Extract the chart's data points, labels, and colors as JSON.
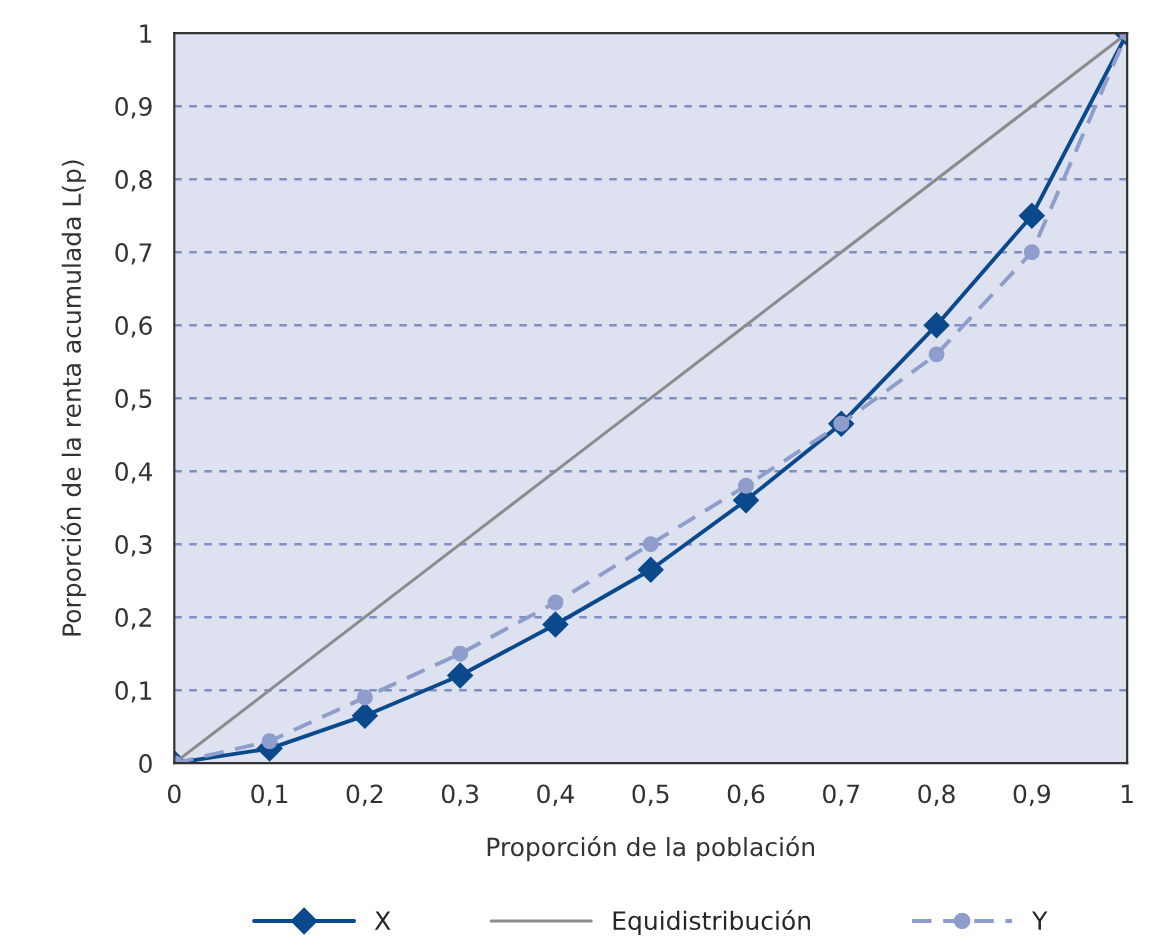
{
  "chart_data": {
    "type": "line",
    "xlabel": "Proporción de la población",
    "ylabel": "Porporción de la renta acumulada L(p)",
    "x": [
      0,
      0.1,
      0.2,
      0.3,
      0.4,
      0.5,
      0.6,
      0.7,
      0.8,
      0.9,
      1
    ],
    "series": [
      {
        "name": "X",
        "color": "#0a4a8c",
        "marker": "diamond",
        "line_style": "solid",
        "values": [
          0,
          0.02,
          0.065,
          0.12,
          0.19,
          0.265,
          0.36,
          0.465,
          0.6,
          0.75,
          1
        ]
      },
      {
        "name": "Equidistribución",
        "color": "#8c8c8c",
        "marker": "none",
        "line_style": "solid",
        "values": [
          0,
          0.1,
          0.2,
          0.3,
          0.4,
          0.5,
          0.6,
          0.7,
          0.8,
          0.9,
          1
        ]
      },
      {
        "name": "Y",
        "color": "#8e9dcb",
        "marker": "circle",
        "line_style": "dashed",
        "values": [
          0,
          0.03,
          0.09,
          0.15,
          0.22,
          0.3,
          0.38,
          0.465,
          0.56,
          0.7,
          1
        ]
      }
    ],
    "xlim": [
      0,
      1
    ],
    "ylim": [
      0,
      1
    ],
    "xticks": [
      0,
      {
        "value": 0.1,
        "label": "0,1"
      },
      {
        "value": 0.2,
        "label": "0,2"
      },
      {
        "value": 0.3,
        "label": "0,3"
      },
      {
        "value": 0.4,
        "label": "0,4"
      },
      {
        "value": 0.5,
        "label": "0,5"
      },
      {
        "value": 0.6,
        "label": "0,6"
      },
      {
        "value": 0.7,
        "label": "0,7"
      },
      {
        "value": 0.8,
        "label": "0,8"
      },
      {
        "value": 0.9,
        "label": "0,9"
      },
      1
    ],
    "yticks": [
      0,
      {
        "value": 0.1,
        "label": "0,1"
      },
      {
        "value": 0.2,
        "label": "0,2"
      },
      {
        "value": 0.3,
        "label": "0,3"
      },
      {
        "value": 0.4,
        "label": "0,4"
      },
      {
        "value": 0.5,
        "label": "0,5"
      },
      {
        "value": 0.6,
        "label": "0,6"
      },
      {
        "value": 0.7,
        "label": "0,7"
      },
      {
        "value": 0.8,
        "label": "0,8"
      },
      {
        "value": 0.9,
        "label": "0,9"
      },
      1
    ],
    "grid": "y",
    "legend": "bottom"
  }
}
